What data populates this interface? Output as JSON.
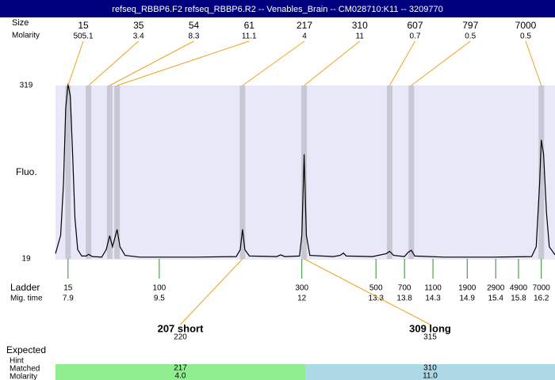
{
  "header": {
    "title": "refseq_RBBP6.F2  refseq_RBBP6.R2 -- Venables_Brain -- CM028710:K11 -- 3209770"
  },
  "chart_data": {
    "type": "electropherogram",
    "ylabel": "Fluo.",
    "xlim": [
      7.68,
      16.44
    ],
    "ylim": [
      19,
      319
    ],
    "yticks": [
      19,
      319
    ],
    "color": "#000000",
    "x": [
      7.68,
      7.77,
      7.82,
      7.86,
      7.9,
      7.94,
      7.98,
      8.02,
      8.07,
      8.14,
      8.22,
      8.26,
      8.33,
      8.49,
      8.57,
      8.63,
      8.68,
      8.72,
      8.76,
      8.81,
      8.9,
      9.16,
      9.5,
      10.14,
      10.85,
      10.92,
      10.96,
      11.0,
      11.08,
      11.56,
      11.63,
      11.7,
      11.96,
      12.0,
      12.04,
      12.08,
      12.14,
      12.55,
      12.67,
      12.73,
      12.78,
      13.24,
      13.48,
      13.54,
      13.61,
      13.8,
      13.86,
      13.92,
      13.98,
      14.5,
      15.37,
      16.03,
      16.11,
      16.17,
      16.2,
      16.24,
      16.29,
      16.34,
      16.44
    ],
    "values": [
      28,
      60,
      150,
      280,
      322,
      300,
      200,
      90,
      35,
      24,
      24,
      27,
      23,
      22,
      35,
      59,
      40,
      55,
      70,
      40,
      25,
      22,
      22,
      22,
      23,
      35,
      70,
      35,
      24,
      23,
      26,
      23,
      24,
      60,
      200,
      60,
      25,
      23,
      25,
      29,
      24,
      23,
      28,
      32,
      25,
      23,
      30,
      34,
      24,
      22,
      22,
      23,
      40,
      150,
      225,
      200,
      100,
      40,
      26
    ],
    "peaks": {
      "label_size": "Size",
      "label_molarity": "Molarity",
      "sizes": [
        15,
        35,
        54,
        61,
        217,
        310,
        607,
        797,
        7000
      ],
      "molarities": [
        505.1,
        3.4,
        8.3,
        11.1,
        4,
        11,
        0.7,
        0.5,
        0.5
      ],
      "times": [
        7.9,
        8.26,
        8.63,
        8.76,
        10.96,
        12.04,
        13.54,
        13.92,
        16.2
      ]
    },
    "ladder": {
      "label": "Ladder",
      "time_label": "Mig. time",
      "sizes": [
        15,
        100,
        300,
        500,
        700,
        1100,
        1900,
        2900,
        4900,
        7000
      ],
      "times": [
        7.9,
        9.5,
        12,
        13.3,
        13.8,
        14.3,
        14.9,
        15.4,
        15.8,
        16.2
      ]
    }
  },
  "matches": {
    "labels": {
      "expected": "Expected",
      "hint": "Hint",
      "matched": "Matched",
      "molarity": "Molarity"
    },
    "items": [
      {
        "expected": "207 short",
        "hint": 220,
        "matched": 217,
        "molarity": "4.0",
        "color": "#90ee90"
      },
      {
        "expected": "309 long",
        "hint": 315,
        "matched": 310,
        "molarity": "11.0",
        "color": "#add8e6"
      }
    ]
  }
}
